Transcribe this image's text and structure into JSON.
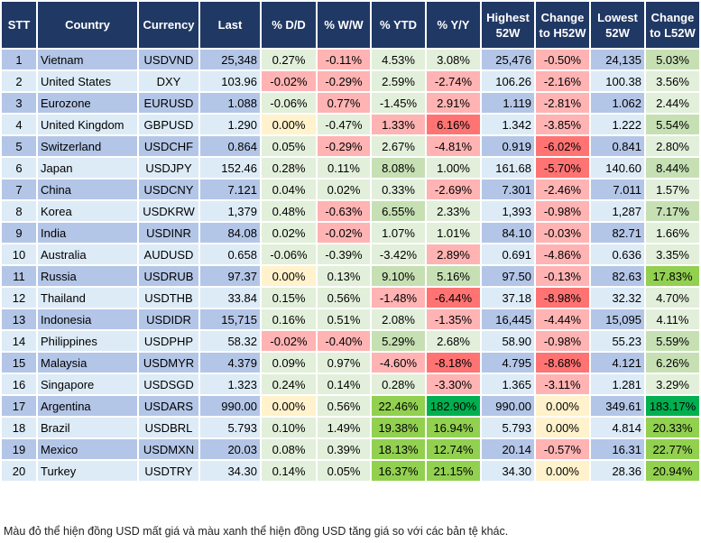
{
  "headers": [
    "STT",
    "Country",
    "Currency",
    "Last",
    "% D/D",
    "% W/W",
    "% YTD",
    "% Y/Y",
    "Highest 52W",
    "Change to H52W",
    "Lowest 52W",
    "Change to L52W"
  ],
  "colors": {
    "G": "#e2efda",
    "R": "#ffb3b3",
    "RR": "#ff7373",
    "Y": "#fff2cc",
    "GG": "#c6e0b4",
    "G3": "#92d050",
    "G4": "#00b050"
  },
  "rows": [
    {
      "stt": "1",
      "country": "Vietnam",
      "currency": "USDVND",
      "last": "25,348",
      "dd": "0.27%",
      "ww": "-0.11%",
      "ytd": "4.53%",
      "yy": "3.08%",
      "high": "25,476",
      "chh": "-0.50%",
      "low": "24,135",
      "chl": "5.03%",
      "heat": [
        "G",
        "R",
        "G",
        "G",
        "R",
        "GG"
      ]
    },
    {
      "stt": "2",
      "country": "United States",
      "currency": "DXY",
      "last": "103.96",
      "dd": "-0.02%",
      "ww": "-0.29%",
      "ytd": "2.59%",
      "yy": "-2.74%",
      "high": "106.26",
      "chh": "-2.16%",
      "low": "100.38",
      "chl": "3.56%",
      "heat": [
        "R",
        "R",
        "G",
        "R",
        "R",
        "G"
      ]
    },
    {
      "stt": "3",
      "country": "Eurozone",
      "currency": "EURUSD",
      "last": "1.088",
      "dd": "-0.06%",
      "ww": "0.77%",
      "ytd": "-1.45%",
      "yy": "2.91%",
      "high": "1.119",
      "chh": "-2.81%",
      "low": "1.062",
      "chl": "2.44%",
      "heat": [
        "G",
        "R",
        "G",
        "R",
        "R",
        "G"
      ]
    },
    {
      "stt": "4",
      "country": "United Kingdom",
      "currency": "GBPUSD",
      "last": "1.290",
      "dd": "0.00%",
      "ww": "-0.47%",
      "ytd": "1.33%",
      "yy": "6.16%",
      "high": "1.342",
      "chh": "-3.85%",
      "low": "1.222",
      "chl": "5.54%",
      "heat": [
        "Y",
        "G",
        "R",
        "RR",
        "R",
        "GG"
      ]
    },
    {
      "stt": "5",
      "country": "Switzerland",
      "currency": "USDCHF",
      "last": "0.864",
      "dd": "0.05%",
      "ww": "-0.29%",
      "ytd": "2.67%",
      "yy": "-4.81%",
      "high": "0.919",
      "chh": "-6.02%",
      "low": "0.841",
      "chl": "2.80%",
      "heat": [
        "G",
        "R",
        "G",
        "R",
        "RR",
        "G"
      ]
    },
    {
      "stt": "6",
      "country": "Japan",
      "currency": "USDJPY",
      "last": "152.46",
      "dd": "0.28%",
      "ww": "0.11%",
      "ytd": "8.08%",
      "yy": "1.00%",
      "high": "161.68",
      "chh": "-5.70%",
      "low": "140.60",
      "chl": "8.44%",
      "heat": [
        "G",
        "G",
        "GG",
        "G",
        "RR",
        "GG"
      ]
    },
    {
      "stt": "7",
      "country": "China",
      "currency": "USDCNY",
      "last": "7.121",
      "dd": "0.04%",
      "ww": "0.02%",
      "ytd": "0.33%",
      "yy": "-2.69%",
      "high": "7.301",
      "chh": "-2.46%",
      "low": "7.011",
      "chl": "1.57%",
      "heat": [
        "G",
        "G",
        "G",
        "R",
        "R",
        "G"
      ]
    },
    {
      "stt": "8",
      "country": "Korea",
      "currency": "USDKRW",
      "last": "1,379",
      "dd": "0.48%",
      "ww": "-0.63%",
      "ytd": "6.55%",
      "yy": "2.33%",
      "high": "1,393",
      "chh": "-0.98%",
      "low": "1,287",
      "chl": "7.17%",
      "heat": [
        "G",
        "R",
        "GG",
        "G",
        "R",
        "GG"
      ]
    },
    {
      "stt": "9",
      "country": "India",
      "currency": "USDINR",
      "last": "84.08",
      "dd": "0.02%",
      "ww": "-0.02%",
      "ytd": "1.07%",
      "yy": "1.01%",
      "high": "84.10",
      "chh": "-0.03%",
      "low": "82.71",
      "chl": "1.66%",
      "heat": [
        "G",
        "R",
        "G",
        "G",
        "R",
        "G"
      ]
    },
    {
      "stt": "10",
      "country": "Australia",
      "currency": "AUDUSD",
      "last": "0.658",
      "dd": "-0.06%",
      "ww": "-0.39%",
      "ytd": "-3.42%",
      "yy": "2.89%",
      "high": "0.691",
      "chh": "-4.86%",
      "low": "0.636",
      "chl": "3.35%",
      "heat": [
        "G",
        "G",
        "G",
        "R",
        "R",
        "G"
      ]
    },
    {
      "stt": "11",
      "country": "Russia",
      "currency": "USDRUB",
      "last": "97.37",
      "dd": "0.00%",
      "ww": "0.13%",
      "ytd": "9.10%",
      "yy": "5.16%",
      "high": "97.50",
      "chh": "-0.13%",
      "low": "82.63",
      "chl": "17.83%",
      "heat": [
        "Y",
        "G",
        "GG",
        "GG",
        "R",
        "G3"
      ]
    },
    {
      "stt": "12",
      "country": "Thailand",
      "currency": "USDTHB",
      "last": "33.84",
      "dd": "0.15%",
      "ww": "0.56%",
      "ytd": "-1.48%",
      "yy": "-6.44%",
      "high": "37.18",
      "chh": "-8.98%",
      "low": "32.32",
      "chl": "4.70%",
      "heat": [
        "G",
        "G",
        "R",
        "RR",
        "RR",
        "G"
      ]
    },
    {
      "stt": "13",
      "country": "Indonesia",
      "currency": "USDIDR",
      "last": "15,715",
      "dd": "0.16%",
      "ww": "0.51%",
      "ytd": "2.08%",
      "yy": "-1.35%",
      "high": "16,445",
      "chh": "-4.44%",
      "low": "15,095",
      "chl": "4.11%",
      "heat": [
        "G",
        "G",
        "G",
        "R",
        "R",
        "G"
      ]
    },
    {
      "stt": "14",
      "country": "Philippines",
      "currency": "USDPHP",
      "last": "58.32",
      "dd": "-0.02%",
      "ww": "-0.40%",
      "ytd": "5.29%",
      "yy": "2.68%",
      "high": "58.90",
      "chh": "-0.98%",
      "low": "55.23",
      "chl": "5.59%",
      "heat": [
        "R",
        "R",
        "GG",
        "G",
        "R",
        "GG"
      ]
    },
    {
      "stt": "15",
      "country": "Malaysia",
      "currency": "USDMYR",
      "last": "4.379",
      "dd": "0.09%",
      "ww": "0.97%",
      "ytd": "-4.60%",
      "yy": "-8.18%",
      "high": "4.795",
      "chh": "-8.68%",
      "low": "4.121",
      "chl": "6.26%",
      "heat": [
        "G",
        "G",
        "R",
        "RR",
        "RR",
        "GG"
      ]
    },
    {
      "stt": "16",
      "country": "Singapore",
      "currency": "USDSGD",
      "last": "1.323",
      "dd": "0.24%",
      "ww": "0.14%",
      "ytd": "0.28%",
      "yy": "-3.30%",
      "high": "1.365",
      "chh": "-3.11%",
      "low": "1.281",
      "chl": "3.29%",
      "heat": [
        "G",
        "G",
        "G",
        "R",
        "R",
        "G"
      ]
    },
    {
      "stt": "17",
      "country": "Argentina",
      "currency": "USDARS",
      "last": "990.00",
      "dd": "0.00%",
      "ww": "0.56%",
      "ytd": "22.46%",
      "yy": "182.90%",
      "high": "990.00",
      "chh": "0.00%",
      "low": "349.61",
      "chl": "183.17%",
      "heat": [
        "Y",
        "G",
        "G3",
        "G4",
        "Y",
        "G4"
      ]
    },
    {
      "stt": "18",
      "country": "Brazil",
      "currency": "USDBRL",
      "last": "5.793",
      "dd": "0.10%",
      "ww": "1.49%",
      "ytd": "19.38%",
      "yy": "16.94%",
      "high": "5.793",
      "chh": "0.00%",
      "low": "4.814",
      "chl": "20.33%",
      "heat": [
        "G",
        "G",
        "G3",
        "G3",
        "Y",
        "G3"
      ]
    },
    {
      "stt": "19",
      "country": "Mexico",
      "currency": "USDMXN",
      "last": "20.03",
      "dd": "0.08%",
      "ww": "0.39%",
      "ytd": "18.13%",
      "yy": "12.74%",
      "high": "20.14",
      "chh": "-0.57%",
      "low": "16.31",
      "chl": "22.77%",
      "heat": [
        "G",
        "G",
        "G3",
        "G3",
        "R",
        "G3"
      ]
    },
    {
      "stt": "20",
      "country": "Turkey",
      "currency": "USDTRY",
      "last": "34.30",
      "dd": "0.14%",
      "ww": "0.05%",
      "ytd": "16.37%",
      "yy": "21.15%",
      "high": "34.30",
      "chh": "0.00%",
      "low": "28.36",
      "chl": "20.94%",
      "heat": [
        "G",
        "G",
        "G3",
        "G3",
        "Y",
        "G3"
      ]
    }
  ],
  "footer": "Màu đỏ thể hiện đồng USD mất giá và màu xanh thể hiện đồng USD tăng giá so với các bản tệ khác."
}
